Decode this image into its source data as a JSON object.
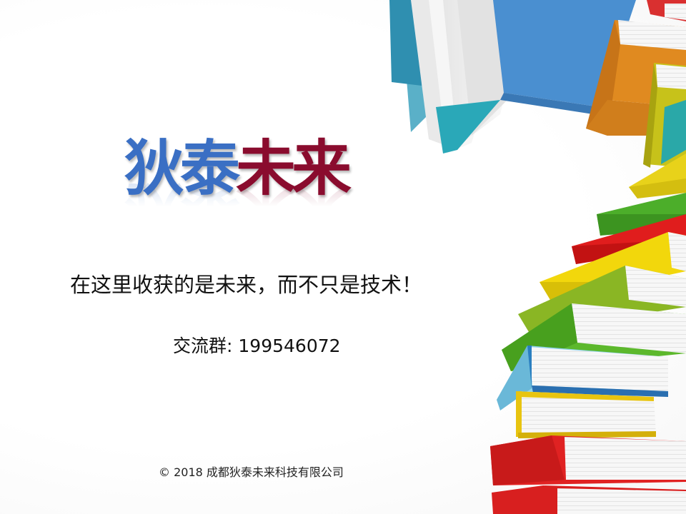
{
  "title": {
    "part1": "狄泰",
    "part2": "未来"
  },
  "slogan": "在这里收获的是未来，而不只是技术！",
  "group": {
    "label": "交流群:",
    "number": "199546072"
  },
  "footer": "© 2018 成都狄泰未来科技有限公司",
  "colors": {
    "title_blue": "#3a6fc4",
    "title_red": "#8a0c2e"
  },
  "decoration": "stacked-books-illustration"
}
